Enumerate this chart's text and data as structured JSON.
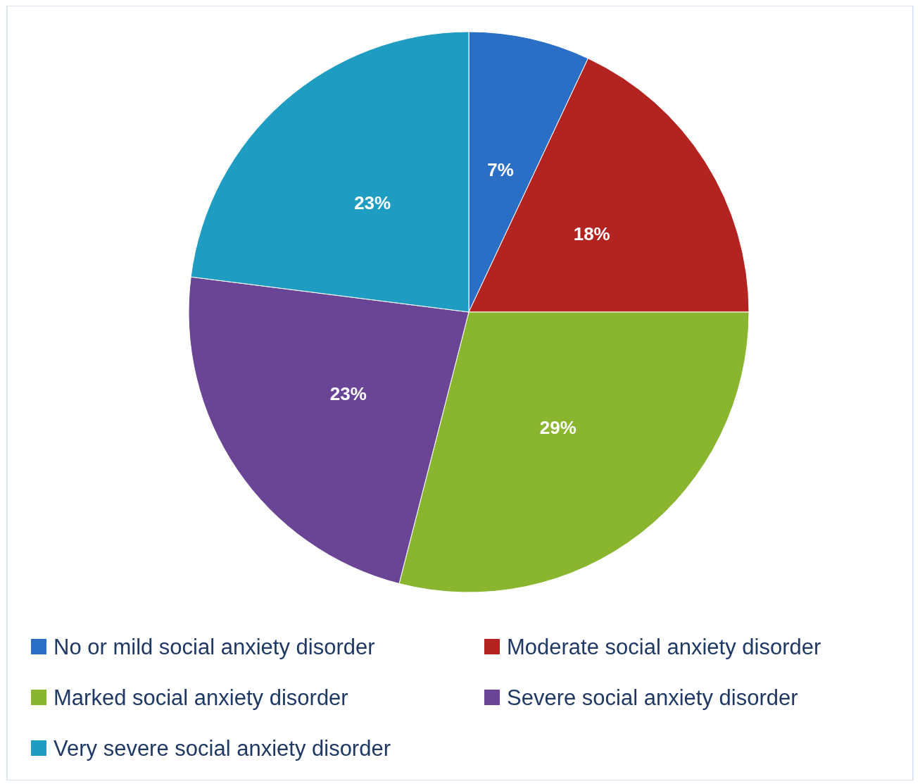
{
  "chart_data": {
    "type": "pie",
    "categories": [
      "No or mild social anxiety disorder",
      "Moderate social anxiety disorder",
      "Marked social anxiety disorder",
      "Severe social anxiety disorder",
      "Very severe social anxiety disorder"
    ],
    "values": [
      7,
      18,
      29,
      23,
      23
    ],
    "colors": [
      "#2a6ec6",
      "#b3231f",
      "#89b52f",
      "#6a4596",
      "#1f9cc2"
    ],
    "value_labels": [
      "7%",
      "18%",
      "29%",
      "23%",
      "23%"
    ],
    "legend": "bottom"
  }
}
